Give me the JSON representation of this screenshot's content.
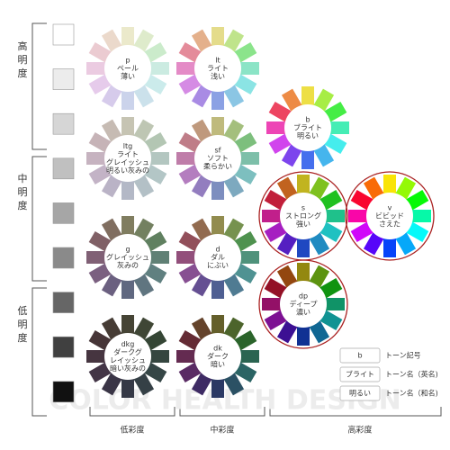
{
  "side_labels": [
    "高明度",
    "中明度",
    "低明度"
  ],
  "bottom_labels": [
    "低彩度",
    "中彩度",
    "高彩度"
  ],
  "tones": [
    {
      "symbol": "p",
      "lines": [
        "ペール",
        "薄い"
      ]
    },
    {
      "symbol": "lt",
      "lines": [
        "ライト",
        "浅い"
      ]
    },
    {
      "symbol": "b",
      "lines": [
        "ブライト",
        "明るい"
      ]
    },
    {
      "symbol": "ltg",
      "lines": [
        "ライト",
        "グレイッシュ",
        "明るい灰みの"
      ]
    },
    {
      "symbol": "sf",
      "lines": [
        "ソフト",
        "柔らかい"
      ]
    },
    {
      "symbol": "s",
      "lines": [
        "ストロング",
        "強い"
      ]
    },
    {
      "symbol": "v",
      "lines": [
        "ビビッド",
        "さえた"
      ]
    },
    {
      "symbol": "g",
      "lines": [
        "グレイッシュ",
        "灰みの"
      ]
    },
    {
      "symbol": "d",
      "lines": [
        "ダル",
        "にぶい"
      ]
    },
    {
      "symbol": "dp",
      "lines": [
        "ディープ",
        "濃い"
      ]
    },
    {
      "symbol": "dkg",
      "lines": [
        "ダークグ",
        "レイッシュ",
        "暗い灰みの"
      ]
    },
    {
      "symbol": "dk",
      "lines": [
        "ダーク",
        "暗い"
      ]
    }
  ],
  "legend": [
    {
      "sample": "b",
      "description": "トーン記号"
    },
    {
      "sample": "ブライト",
      "description": "トーン名（英名)"
    },
    {
      "sample": "明るい",
      "description": "トーン名（和名)"
    }
  ],
  "watermark": "COLOR HEALTH DESIGN"
}
